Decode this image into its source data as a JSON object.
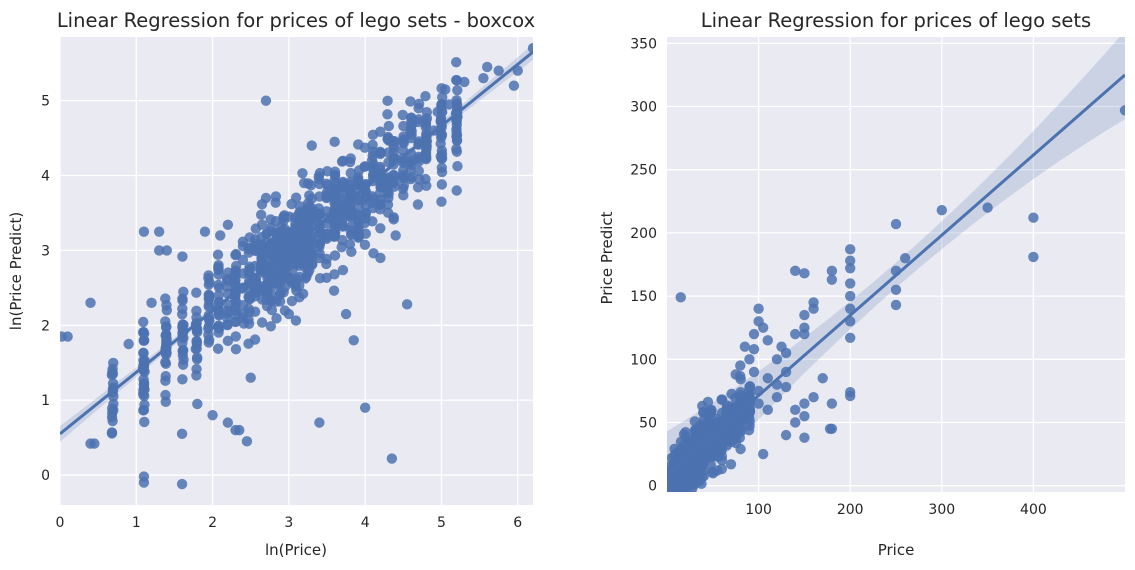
{
  "charts": [
    {
      "type": "scatter",
      "title": "Linear Regression for prices of lego sets - boxcox",
      "xlabel": "ln(Price)",
      "ylabel": "ln(Price Predict)",
      "xlim": [
        0,
        6.2
      ],
      "ylim": [
        -0.4,
        5.85
      ],
      "xticks": [
        0,
        1,
        2,
        3,
        4,
        5,
        6
      ],
      "yticks": [
        0,
        1,
        2,
        3,
        4,
        5
      ],
      "grid": true,
      "color": "#4c72b0",
      "regression": {
        "x0": 0,
        "y0": 0.55,
        "x1": 6.2,
        "y1": 5.65,
        "ci": 0.03
      },
      "cluster": {
        "n": 900,
        "xmin": 0.6,
        "xmax": 5.3,
        "slope": 0.82,
        "intercept": 0.55,
        "spread": 0.34,
        "seed": 11,
        "jitter": 0.02,
        "discrete": [
          0.69,
          1.1,
          1.39,
          1.61,
          1.79,
          1.95,
          2.08,
          2.2,
          2.3,
          2.4,
          2.48,
          2.56,
          2.64,
          2.71,
          2.77,
          2.83,
          2.89,
          2.94,
          3.0,
          3.04,
          3.09,
          3.14,
          3.18,
          3.22,
          3.26,
          3.3,
          3.4,
          3.5,
          3.6,
          3.7,
          3.81,
          3.91,
          4.0,
          4.1,
          4.2,
          4.3,
          4.38,
          4.5,
          4.6,
          4.7,
          4.8,
          5.0,
          5.2
        ]
      },
      "points": [
        [
          0.02,
          1.85
        ],
        [
          0.1,
          1.85
        ],
        [
          0.4,
          2.3
        ],
        [
          0.4,
          0.42
        ],
        [
          0.45,
          0.42
        ],
        [
          1.1,
          -0.02
        ],
        [
          1.1,
          -0.1
        ],
        [
          1.6,
          -0.12
        ],
        [
          1.6,
          0.55
        ],
        [
          1.1,
          3.25
        ],
        [
          1.3,
          3.25
        ],
        [
          1.3,
          3.0
        ],
        [
          1.4,
          3.0
        ],
        [
          2.7,
          5.0
        ],
        [
          3.4,
          0.7
        ],
        [
          4.0,
          0.9
        ],
        [
          4.35,
          0.22
        ],
        [
          4.55,
          2.28
        ],
        [
          2.3,
          0.6
        ],
        [
          2.5,
          1.3
        ],
        [
          1.9,
          3.25
        ],
        [
          2.1,
          3.2
        ],
        [
          5.0,
          3.65
        ],
        [
          5.2,
          3.8
        ],
        [
          5.05,
          5.15
        ],
        [
          5.3,
          5.25
        ],
        [
          5.6,
          5.45
        ],
        [
          5.75,
          5.4
        ],
        [
          5.95,
          5.2
        ],
        [
          6.0,
          5.4
        ],
        [
          6.2,
          5.7
        ],
        [
          5.55,
          5.3
        ],
        [
          3.3,
          4.4
        ],
        [
          3.6,
          4.45
        ],
        [
          4.4,
          3.2
        ],
        [
          4.2,
          2.9
        ],
        [
          0.7,
          1.05
        ],
        [
          0.7,
          0.95
        ],
        [
          0.9,
          1.75
        ],
        [
          3.0,
          2.15
        ],
        [
          2.7,
          3.7
        ],
        [
          3.85,
          1.8
        ],
        [
          3.75,
          2.15
        ],
        [
          1.8,
          0.95
        ],
        [
          2.0,
          0.8
        ],
        [
          2.2,
          0.7
        ],
        [
          2.45,
          0.45
        ],
        [
          2.35,
          0.6
        ],
        [
          1.2,
          2.3
        ],
        [
          1.4,
          2.2
        ],
        [
          4.7,
          4.9
        ],
        [
          4.95,
          4.85
        ],
        [
          4.9,
          4.6
        ],
        [
          5.1,
          4.95
        ],
        [
          3.2,
          3.9
        ]
      ]
    },
    {
      "type": "scatter",
      "title": "Linear Regression for prices of lego sets",
      "xlabel": "Price",
      "ylabel": "Price Predict",
      "xlim": [
        0,
        500
      ],
      "ylim": [
        -5,
        355
      ],
      "xticks": [
        100,
        200,
        300,
        400
      ],
      "yticks": [
        0,
        50,
        100,
        150,
        200,
        250,
        300,
        350
      ],
      "grid": true,
      "color": "#4c72b0",
      "regression": {
        "x0": 0,
        "y0": 8,
        "x1": 500,
        "y1": 325,
        "ci": 10
      },
      "cluster": {
        "n": 650,
        "xmin": 3,
        "xmax": 90,
        "slope": 0.68,
        "intercept": 2,
        "spread": 11,
        "seed": 23,
        "jitter": 1.2,
        "discrete": [
          5,
          8,
          10,
          12,
          15,
          18,
          20,
          22,
          25,
          28,
          30,
          32,
          35,
          38,
          40,
          45,
          48,
          50,
          55,
          60,
          65,
          70,
          75,
          80,
          85,
          90
        ]
      },
      "points": [
        [
          15,
          149
        ],
        [
          100,
          140
        ],
        [
          100,
          130
        ],
        [
          105,
          125
        ],
        [
          95,
          120
        ],
        [
          110,
          115
        ],
        [
          125,
          110
        ],
        [
          130,
          105
        ],
        [
          120,
          100
        ],
        [
          140,
          170
        ],
        [
          150,
          168
        ],
        [
          160,
          145
        ],
        [
          160,
          140
        ],
        [
          180,
          170
        ],
        [
          180,
          163
        ],
        [
          200,
          187
        ],
        [
          200,
          178
        ],
        [
          200,
          172
        ],
        [
          200,
          160
        ],
        [
          200,
          150
        ],
        [
          200,
          140
        ],
        [
          200,
          130
        ],
        [
          200,
          117
        ],
        [
          200,
          74
        ],
        [
          200,
          71
        ],
        [
          180,
          65
        ],
        [
          170,
          85
        ],
        [
          180,
          45
        ],
        [
          178,
          45
        ],
        [
          160,
          70
        ],
        [
          150,
          65
        ],
        [
          150,
          55
        ],
        [
          140,
          50
        ],
        [
          150,
          38
        ],
        [
          130,
          40
        ],
        [
          150,
          120
        ],
        [
          150,
          125
        ],
        [
          150,
          135
        ],
        [
          140,
          120
        ],
        [
          130,
          90
        ],
        [
          120,
          70
        ],
        [
          110,
          60
        ],
        [
          105,
          25
        ],
        [
          250,
          207
        ],
        [
          250,
          170
        ],
        [
          260,
          180
        ],
        [
          250,
          155
        ],
        [
          250,
          143
        ],
        [
          300,
          218
        ],
        [
          350,
          220
        ],
        [
          400,
          212
        ],
        [
          400,
          181
        ],
        [
          500,
          297
        ],
        [
          100,
          75
        ],
        [
          110,
          85
        ],
        [
          120,
          80
        ],
        [
          130,
          78
        ],
        [
          140,
          60
        ],
        [
          100,
          65
        ],
        [
          95,
          90
        ],
        [
          90,
          100
        ],
        [
          85,
          110
        ],
        [
          95,
          108
        ],
        [
          80,
          95
        ],
        [
          75,
          88
        ]
      ]
    }
  ]
}
